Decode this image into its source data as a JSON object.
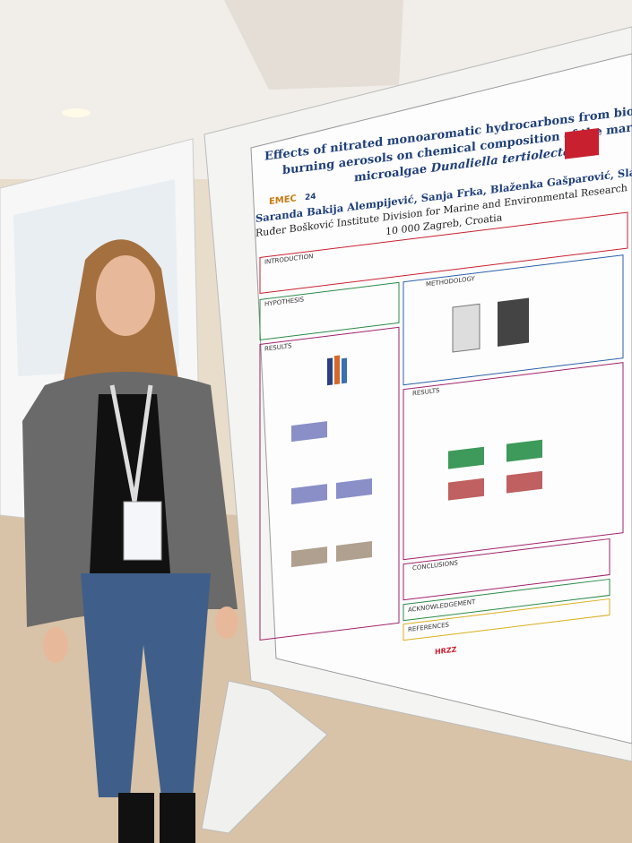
{
  "poster": {
    "title_lines": [
      "Effects of nitrated monoaromatic hydrocarbons from biomass",
      "burning aerosols on chemical composition of the marine",
      "microalgae"
    ],
    "species": "Dunaliella tertiolecta",
    "logo": "EMEC",
    "logo_number": "24",
    "authors": "Saranda Bakija Alempijević, Sanja Frka, Blaženka Gašparović, Slađana Strmeč",
    "institution": "Ruđer Bošković Institute Division for Marine and Environmental Research",
    "city": "10 000 Zagreb, Croatia",
    "sections": {
      "introduction": "INTRODUCTION",
      "hypothesis": "HYPOTHESIS",
      "methodology": "METHODOLOGY",
      "results_left": "RESULTS",
      "results_right": "RESULTS",
      "conclusions": "CONCLUSIONS",
      "acknowledgement": "ACKNOWLEDGEMENT",
      "references": "REFERENCES"
    },
    "funder": "HRZZ"
  }
}
